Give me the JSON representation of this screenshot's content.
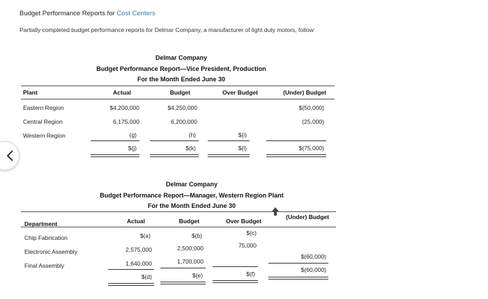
{
  "header": {
    "title_prefix": "Budget Performance Reports for ",
    "title_accent": "Cost Centers",
    "intro": "Partially completed budget performance reports for Delmar Company, a manufacturer of light duty motors, follow:"
  },
  "report1": {
    "company": "Delmar Company",
    "title": "Budget Performance Report—Vice President, Production",
    "period": "For the Month Ended June 30",
    "columns": [
      "Plant",
      "Actual",
      "Budget",
      "Over Budget",
      "(Under) Budget"
    ],
    "rows": [
      {
        "label": "Eastern Region",
        "actual": "$4,200,000",
        "budget": "$4,250,000",
        "over": "",
        "under": "$(50,000)"
      },
      {
        "label": "Central Region",
        "actual": "6,175,000",
        "budget": "6,200,000",
        "over": "",
        "under": "(25,000)"
      },
      {
        "label": "Western Region",
        "actual": "(g)",
        "budget": "(h)",
        "over": "$(i)",
        "under": ""
      }
    ],
    "totals": {
      "actual": "$(j)",
      "budget": "$(k)",
      "over": "$(l)",
      "under": "$(75,000)"
    }
  },
  "report2": {
    "company": "Delmar Company",
    "title": "Budget Performance Report—Manager, Western Region Plant",
    "period": "For the Month Ended June 30",
    "columns": [
      "Department",
      "Actual",
      "Budget",
      "Over Budget",
      "(Under) Budget"
    ],
    "rows": [
      {
        "label": "Chip Fabrication",
        "actual": "$(a)",
        "budget": "$(b)",
        "over": "$(c)",
        "under": ""
      },
      {
        "label": "Electronic Assembly",
        "actual": "2,575,000",
        "budget": "2,500,000",
        "over": "75,000",
        "under": ""
      },
      {
        "label": "Final Assembly",
        "actual": "1,640,000",
        "budget": "1,700,000",
        "over": "",
        "under": "$(60,000)"
      }
    ],
    "totals": {
      "actual": "$(d)",
      "budget": "$(e)",
      "over": "$(f)",
      "under": "$(60,000)"
    }
  },
  "icons": {
    "prev": "chevron-left-icon",
    "cursor": "mouse-cursor-icon"
  }
}
